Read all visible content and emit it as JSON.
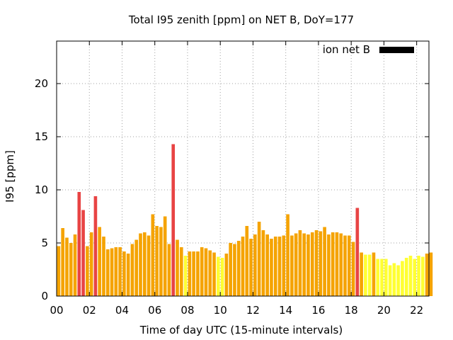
{
  "chart_data": {
    "type": "bar",
    "title": "Total I95 zenith [ppm] on NET B, DoY=177",
    "xlabel": "Time of day UTC (15-minute intervals)",
    "ylabel": "I95 [ppm]",
    "xlim": [
      0,
      22.75
    ],
    "ylim": [
      0,
      24
    ],
    "bin_hours": 0.25,
    "x_ticks": [
      0,
      2,
      4,
      6,
      8,
      10,
      12,
      14,
      16,
      18,
      20,
      22
    ],
    "x_tick_labels": [
      "00",
      "02",
      "04",
      "06",
      "08",
      "10",
      "12",
      "14",
      "16",
      "18",
      "20",
      "22"
    ],
    "y_ticks": [
      0,
      5,
      10,
      15,
      20
    ],
    "y_tick_labels": [
      "0",
      "5",
      "10",
      "15",
      "20"
    ],
    "grid": true,
    "legend_position": "top-right",
    "series": [
      {
        "name": "ion net B",
        "legend_color": "#000000",
        "x_start": 0,
        "values": [
          4.7,
          6.4,
          5.5,
          5.0,
          5.8,
          9.8,
          8.1,
          4.7,
          6.0,
          9.4,
          6.5,
          5.6,
          4.4,
          4.5,
          4.6,
          4.6,
          4.2,
          4.0,
          4.9,
          5.3,
          5.9,
          6.0,
          5.7,
          7.7,
          6.6,
          6.5,
          7.5,
          4.9,
          14.3,
          5.3,
          4.6,
          3.8,
          4.2,
          4.2,
          4.2,
          4.6,
          4.5,
          4.3,
          4.1,
          3.7,
          3.6,
          4.0,
          5.0,
          4.9,
          5.2,
          5.6,
          6.6,
          5.4,
          5.8,
          7.0,
          6.2,
          5.8,
          5.4,
          5.6,
          5.6,
          5.7,
          7.7,
          5.7,
          5.9,
          6.2,
          5.9,
          5.8,
          6.0,
          6.2,
          6.1,
          6.5,
          5.8,
          6.0,
          6.0,
          5.9,
          5.7,
          5.7,
          5.1,
          8.3,
          4.1,
          3.9,
          3.9,
          4.1,
          3.5,
          3.5,
          3.5,
          2.9,
          3.1,
          2.9,
          3.3,
          3.6,
          3.8,
          3.5,
          3.8,
          3.7,
          4.0,
          4.1
        ]
      }
    ],
    "color_scale": {
      "low": "#ffff33",
      "mid": "#f5a300",
      "high": "#e84444",
      "thresholds": [
        4.0,
        8.0
      ]
    }
  }
}
